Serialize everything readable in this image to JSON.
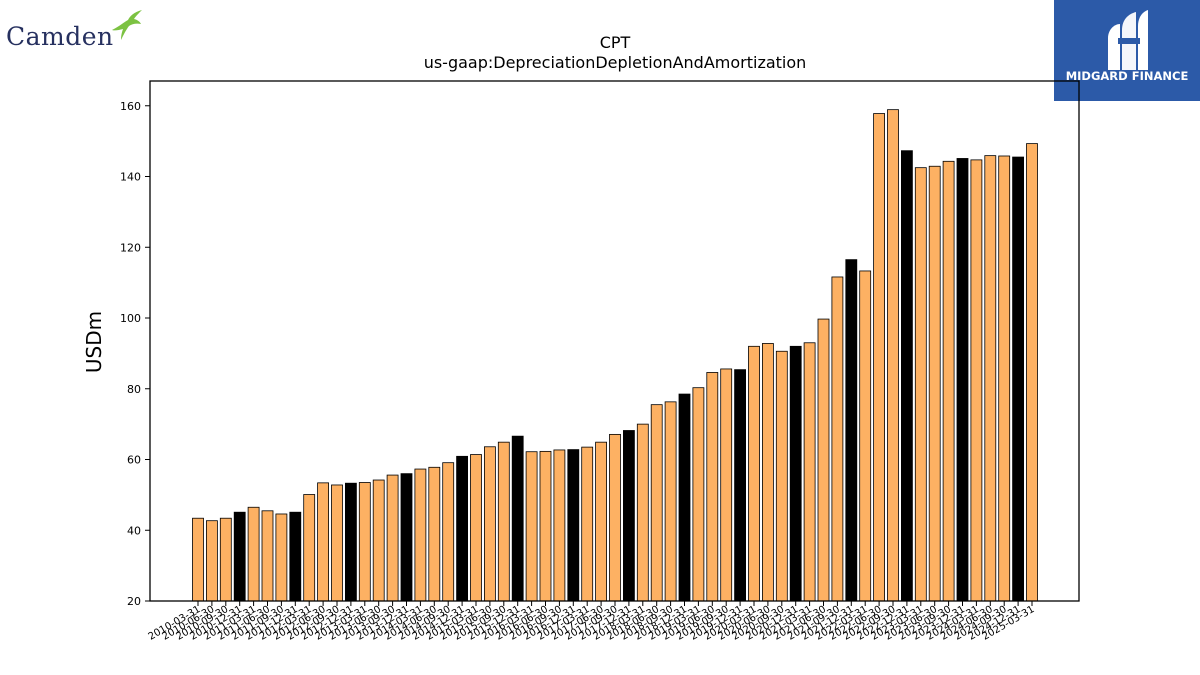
{
  "branding": {
    "left_logo": "Camden",
    "right_logo": "MIDGARD FINANCE"
  },
  "colors": {
    "bar_default": "#fdb163",
    "bar_highlight": "#000000",
    "bar_stroke": "#000000",
    "right_logo_bg": "#2c5aa8",
    "left_logo_text": "#26305f",
    "left_logo_bird": "#7cc242"
  },
  "chart_data": {
    "type": "bar",
    "title": "CPT",
    "subtitle": "us-gaap:DepreciationDepletionAndAmortization",
    "ylabel": "USDm",
    "xlabel": "",
    "ylim": [
      20,
      167
    ],
    "yticks": [
      20,
      40,
      60,
      80,
      100,
      120,
      140,
      160
    ],
    "grid": false,
    "categories": [
      "2010-03-31",
      "2010-06-30",
      "2010-09-30",
      "2010-12-31",
      "2011-03-31",
      "2011-06-30",
      "2011-09-30",
      "2011-12-31",
      "2012-03-31",
      "2012-06-30",
      "2012-09-30",
      "2012-12-31",
      "2013-03-31",
      "2013-06-30",
      "2013-09-30",
      "2013-12-31",
      "2014-03-31",
      "2014-06-30",
      "2014-09-30",
      "2014-12-31",
      "2015-03-31",
      "2015-06-30",
      "2015-09-30",
      "2015-12-31",
      "2016-03-31",
      "2016-06-30",
      "2016-09-30",
      "2016-12-31",
      "2017-03-31",
      "2017-06-30",
      "2017-09-30",
      "2017-12-31",
      "2018-03-31",
      "2018-06-30",
      "2018-09-30",
      "2018-12-31",
      "2019-03-31",
      "2019-06-30",
      "2019-09-30",
      "2019-12-31",
      "2020-03-31",
      "2020-06-30",
      "2020-09-30",
      "2020-12-31",
      "2021-03-31",
      "2021-06-30",
      "2021-09-30",
      "2021-12-31",
      "2022-03-31",
      "2022-06-30",
      "2022-09-30",
      "2022-12-31",
      "2023-03-31",
      "2023-06-30",
      "2023-09-30",
      "2023-12-31",
      "2024-03-31",
      "2024-06-30",
      "2024-09-30",
      "2024-12-31",
      "2025-03-31"
    ],
    "values": [
      43.4,
      42.7,
      43.4,
      45.1,
      46.5,
      45.5,
      44.6,
      45.1,
      50.1,
      53.4,
      52.8,
      53.3,
      53.5,
      54.2,
      55.6,
      56.0,
      57.3,
      57.8,
      59.1,
      60.9,
      61.4,
      63.6,
      64.9,
      66.6,
      62.2,
      62.3,
      62.7,
      62.8,
      63.5,
      64.9,
      67.1,
      68.2,
      70.0,
      75.5,
      76.3,
      78.5,
      80.3,
      84.6,
      85.6,
      85.4,
      92.0,
      92.8,
      90.6,
      92.0,
      93.0,
      99.7,
      111.6,
      116.5,
      113.3,
      157.8,
      158.9,
      147.3,
      142.5,
      142.9,
      144.3,
      145.1,
      144.7,
      145.9,
      145.8,
      145.5,
      149.3
    ],
    "highlight": [
      false,
      false,
      false,
      true,
      false,
      false,
      false,
      true,
      false,
      false,
      false,
      true,
      false,
      false,
      false,
      true,
      false,
      false,
      false,
      true,
      false,
      false,
      false,
      true,
      false,
      false,
      false,
      true,
      false,
      false,
      false,
      true,
      false,
      false,
      false,
      true,
      false,
      false,
      false,
      true,
      false,
      false,
      false,
      true,
      false,
      false,
      false,
      true,
      false,
      false,
      false,
      true,
      false,
      false,
      false,
      true,
      false,
      false,
      false,
      true,
      false
    ]
  }
}
